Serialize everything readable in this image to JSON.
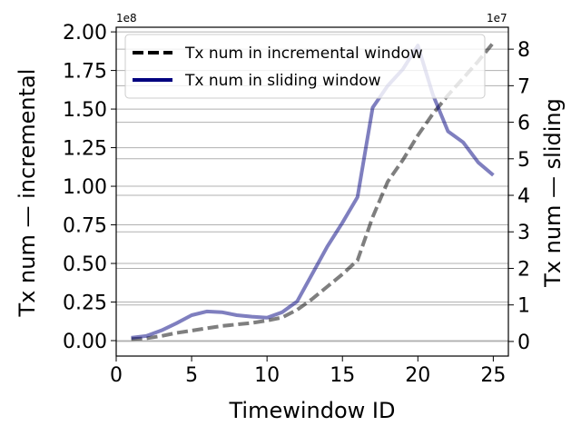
{
  "chart_data": {
    "type": "line",
    "xlabel": "Timewindow ID",
    "ylabel_left": "Tx num — incremental",
    "ylabel_right": "Tx num — sliding",
    "left_offset_label": "1e8",
    "right_offset_label": "1e7",
    "xlim": [
      0,
      26
    ],
    "ylim_left": [
      -0.1,
      2.03
    ],
    "ylim_right": [
      -0.4,
      8.6
    ],
    "x_ticks": [
      0,
      5,
      10,
      15,
      20,
      25
    ],
    "y_left_ticks": [
      0.0,
      0.25,
      0.5,
      0.75,
      1.0,
      1.25,
      1.5,
      1.75,
      2.0
    ],
    "y_left_tick_labels": [
      "0.00",
      "0.25",
      "0.50",
      "0.75",
      "1.00",
      "1.25",
      "1.50",
      "1.75",
      "2.00"
    ],
    "y_right_ticks": [
      0,
      1,
      2,
      3,
      4,
      5,
      6,
      7,
      8
    ],
    "grid": "horizontal",
    "legend_position": "top-left",
    "series": [
      {
        "name": "Tx num in incremental window",
        "axis": "left",
        "style": "dashed",
        "color": "#000000",
        "x": [
          1,
          2,
          3,
          4,
          5,
          6,
          7,
          8,
          9,
          10,
          11,
          12,
          13,
          14,
          15,
          16,
          17,
          18,
          19,
          20,
          21,
          22,
          23,
          24,
          25
        ],
        "values": [
          0.01,
          0.015,
          0.03,
          0.05,
          0.065,
          0.08,
          0.095,
          0.105,
          0.115,
          0.13,
          0.15,
          0.2,
          0.27,
          0.35,
          0.43,
          0.52,
          0.8,
          1.03,
          1.17,
          1.33,
          1.47,
          1.59,
          1.7,
          1.81,
          1.93
        ]
      },
      {
        "name": "Tx num in sliding window",
        "axis": "right",
        "style": "solid",
        "color": "#00007f",
        "x": [
          1,
          2,
          3,
          4,
          5,
          6,
          7,
          8,
          9,
          10,
          11,
          12,
          13,
          14,
          15,
          16,
          17,
          18,
          19,
          20,
          21,
          22,
          23,
          24,
          25
        ],
        "values": [
          0.1,
          0.15,
          0.3,
          0.5,
          0.72,
          0.82,
          0.8,
          0.72,
          0.68,
          0.65,
          0.8,
          1.1,
          1.85,
          2.6,
          3.25,
          3.95,
          6.4,
          7.0,
          7.45,
          8.1,
          6.75,
          5.75,
          5.45,
          4.9,
          4.55
        ]
      }
    ]
  }
}
